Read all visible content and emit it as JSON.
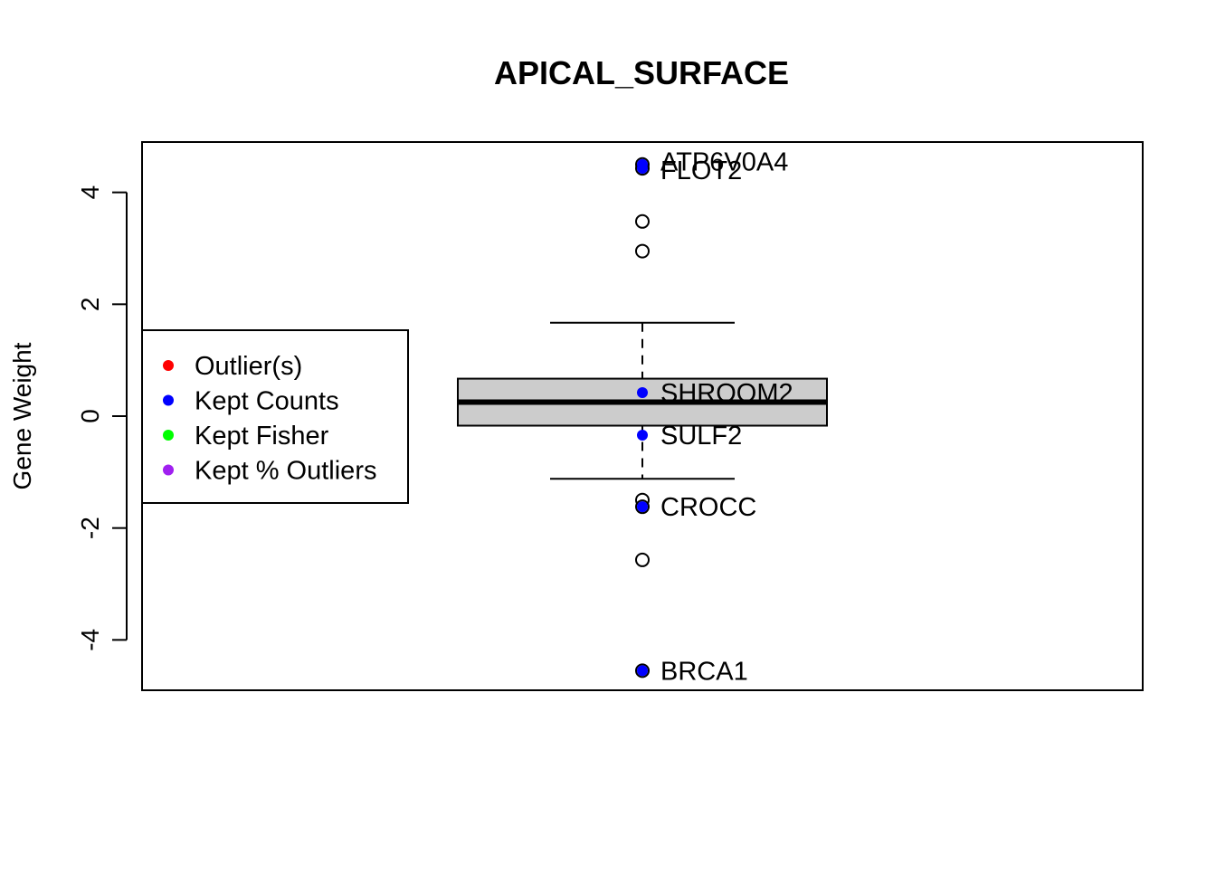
{
  "chart_data": {
    "type": "box",
    "title": "APICAL_SURFACE",
    "xlabel": "",
    "ylabel": "Gene Weight",
    "ylim": [
      -4.9,
      4.9
    ],
    "yticks": [
      -4,
      -2,
      0,
      2,
      4
    ],
    "ytick_labels": [
      "-4",
      "-2",
      "0",
      "2",
      "4"
    ],
    "box": {
      "lower_whisker": -1.12,
      "q1": -0.17,
      "median": 0.25,
      "q3": 0.67,
      "upper_whisker": 1.67
    },
    "outliers": [
      4.5,
      4.43,
      3.48,
      2.95,
      -1.5,
      -1.62,
      -2.57,
      -4.55
    ],
    "highlighted_points": [
      {
        "gene": "ATP6V0A4",
        "value": 4.5,
        "category": "Kept Counts",
        "label_offset": "up"
      },
      {
        "gene": "FLOT2",
        "value": 4.43,
        "category": "Kept Counts",
        "label_offset": "down"
      },
      {
        "gene": "SHROOM2",
        "value": 0.42,
        "category": "Kept Counts",
        "label_offset": "none"
      },
      {
        "gene": "SULF2",
        "value": -0.34,
        "category": "Kept Counts",
        "label_offset": "none"
      },
      {
        "gene": "CROCC",
        "value": -1.62,
        "category": "Kept Counts",
        "label_offset": "none"
      },
      {
        "gene": "BRCA1",
        "value": -4.55,
        "category": "Kept Counts",
        "label_offset": "none"
      }
    ],
    "legend": {
      "placement": "left-middle",
      "entries": [
        {
          "label": "Outlier(s)",
          "color": "#ff0000"
        },
        {
          "label": "Kept Counts",
          "color": "#0000ff"
        },
        {
          "label": "Kept Fisher",
          "color": "#00ff00"
        },
        {
          "label": "Kept % Outliers",
          "color": "#a020f0"
        }
      ]
    },
    "box_fill": "#cccccc"
  }
}
